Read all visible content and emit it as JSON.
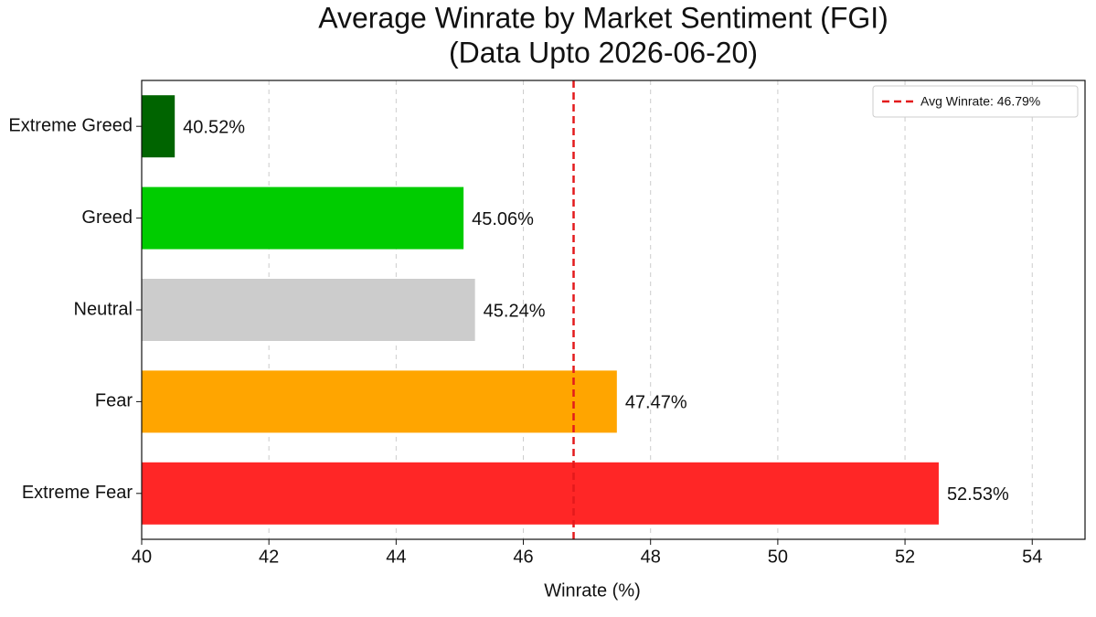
{
  "chart_data": {
    "type": "barh",
    "title": "Average Winrate by Market Sentiment (FGI)",
    "subtitle": "(Data Upto 2026-06-20)",
    "xlabel": "Winrate (%)",
    "categories": [
      "Extreme Greed",
      "Greed",
      "Neutral",
      "Fear",
      "Extreme Fear"
    ],
    "values": [
      40.52,
      45.06,
      45.24,
      47.47,
      52.53
    ],
    "value_labels": [
      "40.52%",
      "45.06%",
      "45.24%",
      "47.47%",
      "52.53%"
    ],
    "colors": [
      "#006400",
      "#00cc00",
      "#cccccc",
      "#ffa500",
      "#ff2626"
    ],
    "xlim": [
      40,
      54.83
    ],
    "xticks": [
      40,
      42,
      44,
      46,
      48,
      50,
      52,
      54
    ],
    "grid": true,
    "avg_line": {
      "value": 46.79,
      "label": "Avg Winrate: 46.79%",
      "color": "#e31a1c"
    },
    "legend": "upper right"
  }
}
